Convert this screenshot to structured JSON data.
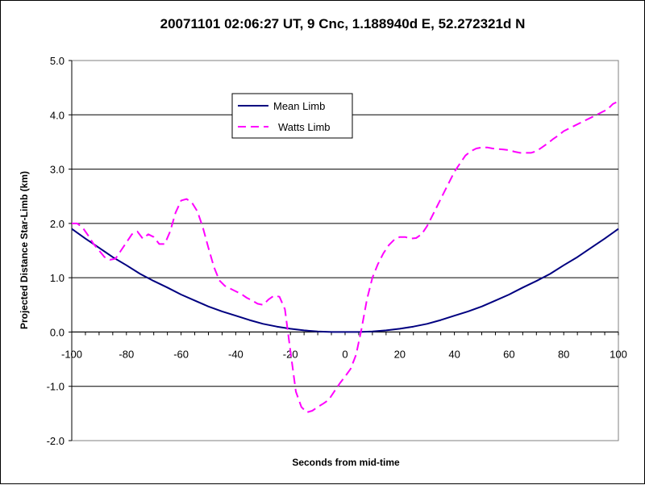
{
  "chart_data": {
    "type": "line",
    "title": "20071101 02:06:27 UT, 9 Cnc, 1.188940d E, 52.272321d N",
    "xlabel": "Seconds from mid-time",
    "ylabel": "Projected Distance Star-Limb (km)",
    "xlim": [
      -100,
      100
    ],
    "ylim": [
      -2.0,
      5.0
    ],
    "x_ticks": [
      "-100",
      "-80",
      "-60",
      "-40",
      "-20",
      "0",
      "20",
      "40",
      "60",
      "80",
      "100"
    ],
    "y_ticks": [
      "5.0",
      "4.0",
      "3.0",
      "2.0",
      "1.0",
      "0.0",
      "-1.0",
      "-2.0"
    ],
    "grid": "horizontal",
    "legend": "inside top-center",
    "series": [
      {
        "name": "Mean Limb",
        "style": "solid",
        "color": "#000080",
        "x": [
          -100,
          -95,
          -90,
          -85,
          -80,
          -75,
          -70,
          -65,
          -60,
          -55,
          -50,
          -45,
          -40,
          -35,
          -30,
          -25,
          -20,
          -15,
          -10,
          -5,
          0,
          5,
          10,
          15,
          20,
          25,
          30,
          35,
          40,
          45,
          50,
          55,
          60,
          65,
          70,
          75,
          80,
          85,
          90,
          95,
          100
        ],
        "y": [
          1.9,
          1.72,
          1.55,
          1.38,
          1.23,
          1.07,
          0.94,
          0.82,
          0.69,
          0.58,
          0.47,
          0.38,
          0.3,
          0.22,
          0.15,
          0.1,
          0.06,
          0.03,
          0.01,
          0.0,
          0.0,
          0.0,
          0.01,
          0.03,
          0.06,
          0.1,
          0.15,
          0.22,
          0.3,
          0.38,
          0.47,
          0.58,
          0.69,
          0.82,
          0.94,
          1.07,
          1.23,
          1.38,
          1.55,
          1.72,
          1.9
        ]
      },
      {
        "name": "Watts Limb",
        "style": "dashed",
        "color": "#ff00ff",
        "x": [
          -100,
          -98,
          -96,
          -94,
          -92,
          -90,
          -88,
          -86,
          -84,
          -82,
          -80,
          -78,
          -76,
          -74,
          -72,
          -70,
          -68,
          -66,
          -64,
          -62,
          -60,
          -58,
          -56,
          -54,
          -52,
          -50,
          -48,
          -46,
          -44,
          -42,
          -40,
          -38,
          -36,
          -34,
          -32,
          -30,
          -28,
          -26,
          -24,
          -22,
          -20,
          -18,
          -16,
          -14,
          -12,
          -10,
          -8,
          -6,
          -4,
          -2,
          0,
          2,
          4,
          6,
          8,
          10,
          12,
          14,
          16,
          18,
          20,
          22,
          24,
          26,
          28,
          30,
          32,
          34,
          36,
          38,
          40,
          42,
          44,
          46,
          48,
          50,
          52,
          54,
          56,
          58,
          60,
          62,
          64,
          66,
          68,
          70,
          72,
          74,
          76,
          78,
          80,
          82,
          84,
          86,
          88,
          90,
          92,
          94,
          96,
          98,
          100
        ],
        "y": [
          2.0,
          2.0,
          1.92,
          1.78,
          1.62,
          1.5,
          1.38,
          1.33,
          1.35,
          1.5,
          1.65,
          1.8,
          1.85,
          1.72,
          1.8,
          1.75,
          1.62,
          1.62,
          1.85,
          2.2,
          2.42,
          2.45,
          2.38,
          2.22,
          1.92,
          1.55,
          1.2,
          0.95,
          0.85,
          0.8,
          0.75,
          0.7,
          0.63,
          0.58,
          0.52,
          0.5,
          0.6,
          0.67,
          0.65,
          0.42,
          -0.35,
          -1.1,
          -1.38,
          -1.48,
          -1.45,
          -1.38,
          -1.32,
          -1.25,
          -1.1,
          -0.95,
          -0.82,
          -0.68,
          -0.42,
          0.05,
          0.6,
          1.0,
          1.25,
          1.45,
          1.6,
          1.7,
          1.75,
          1.75,
          1.72,
          1.73,
          1.8,
          1.95,
          2.15,
          2.35,
          2.55,
          2.75,
          2.95,
          3.1,
          3.25,
          3.33,
          3.38,
          3.4,
          3.4,
          3.38,
          3.37,
          3.36,
          3.35,
          3.32,
          3.3,
          3.3,
          3.3,
          3.33,
          3.4,
          3.47,
          3.55,
          3.62,
          3.7,
          3.75,
          3.8,
          3.85,
          3.9,
          3.95,
          4.0,
          4.05,
          4.1,
          4.2,
          4.25
        ]
      }
    ]
  }
}
